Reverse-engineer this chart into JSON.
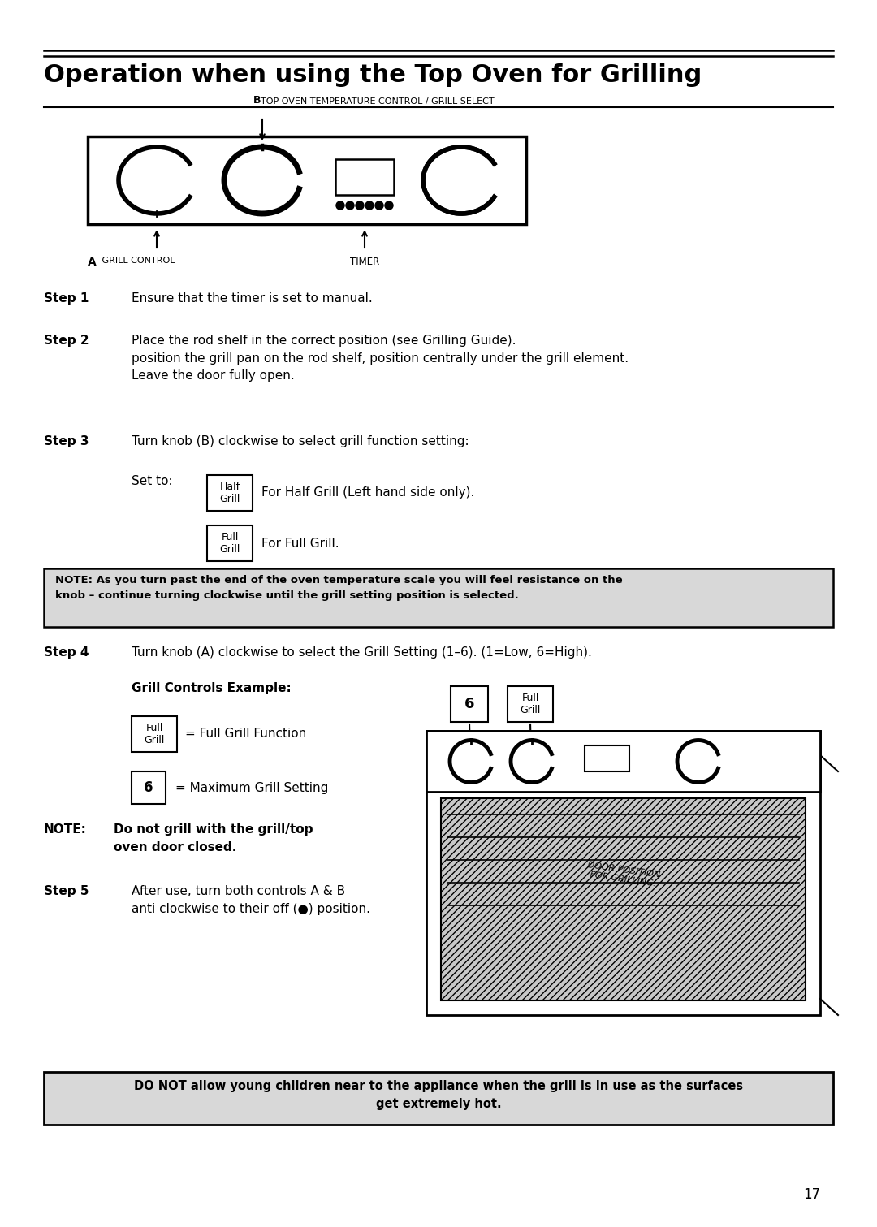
{
  "title": "Operation when using the Top Oven for Grilling",
  "bg_color": "#ffffff",
  "page_number": "17",
  "steps": [
    {
      "label": "Step 1",
      "text": "Ensure that the timer is set to manual."
    },
    {
      "label": "Step 2",
      "text": "Place the rod shelf in the correct position (see Grilling Guide).\nposition the grill pan on the rod shelf, position centrally under the grill element.\nLeave the door fully open."
    },
    {
      "label": "Step 3",
      "text": "Turn knob (B) clockwise to select grill function setting:"
    },
    {
      "label": "Step 4",
      "text": "Turn knob (A) clockwise to select the Grill Setting (1–6). (1=Low, 6=High)."
    },
    {
      "label": "Step 5",
      "text": "After use, turn both controls A & B\nanti clockwise to their off (●) position."
    }
  ],
  "note1": "NOTE: As you turn past the end of the oven temperature scale you will feel resistance on the\nknob – continue turning clockwise until the grill setting position is selected.",
  "note2_label": "NOTE:",
  "note2_text": "Do not grill with the grill/top\noven door closed.",
  "donot_text": "DO NOT allow young children near to the appliance when the grill is in use as the surfaces\nget extremely hot.",
  "grill_controls_label": "Grill Controls Example:",
  "full_grill_func_text": "= Full Grill Function",
  "max_grill_text": "= Maximum Grill Setting",
  "set_to_text": "Set to:",
  "half_grill_text": "For Half Grill (Left hand side only).",
  "full_grill_text": "For Full Grill.",
  "label_A": "A",
  "label_A_sub": " GRILL CONTROL",
  "label_B": "B",
  "label_B_sub": "TOP OVEN TEMPERATURE CONTROL / GRILL SELECT",
  "label_timer": "TIMER"
}
